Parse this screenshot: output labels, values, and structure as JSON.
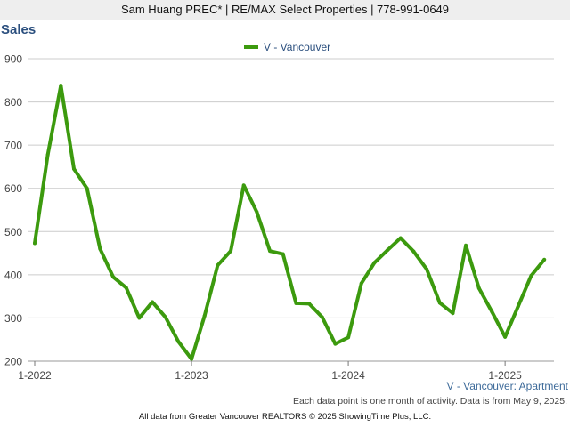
{
  "header": {
    "text": "Sam Huang PREC* | RE/MAX Select Properties | 778-991-0649"
  },
  "footer": {
    "series_caption": "V - Vancouver: Apartment",
    "note": "Each data point is one month of activity. Data is from May 9, 2025.",
    "copyright": "All data from Greater Vancouver REALTORS © 2025 ShowingTime Plus, LLC."
  },
  "colors": {
    "series": "#3c9a0e",
    "title": "#2b4f7e",
    "grid": "#cccccc",
    "header_bg": "#eeeeee"
  },
  "chart_data": {
    "type": "line",
    "title": "Sales",
    "xlabel": "",
    "ylabel": "",
    "ylim": [
      200,
      900
    ],
    "yticks": [
      200,
      300,
      400,
      500,
      600,
      700,
      800,
      900
    ],
    "xticks": [
      {
        "label": "1-2022",
        "x": "2022-01"
      },
      {
        "label": "1-2023",
        "x": "2023-01"
      },
      {
        "label": "1-2024",
        "x": "2024-01"
      },
      {
        "label": "1-2025",
        "x": "2025-01"
      }
    ],
    "grid": true,
    "legend_position": "top-center",
    "series": [
      {
        "name": "V - Vancouver",
        "x": [
          "2022-01",
          "2022-02",
          "2022-03",
          "2022-04",
          "2022-05",
          "2022-06",
          "2022-07",
          "2022-08",
          "2022-09",
          "2022-10",
          "2022-11",
          "2022-12",
          "2023-01",
          "2023-02",
          "2023-03",
          "2023-04",
          "2023-05",
          "2023-06",
          "2023-07",
          "2023-08",
          "2023-09",
          "2023-10",
          "2023-11",
          "2023-12",
          "2024-01",
          "2024-02",
          "2024-03",
          "2024-04",
          "2024-05",
          "2024-06",
          "2024-07",
          "2024-08",
          "2024-09",
          "2024-10",
          "2024-11",
          "2024-12",
          "2025-01",
          "2025-02",
          "2025-03",
          "2025-04"
        ],
        "values": [
          473,
          678,
          838,
          645,
          600,
          460,
          395,
          370,
          300,
          337,
          302,
          245,
          205,
          305,
          422,
          455,
          607,
          545,
          455,
          448,
          334,
          333,
          302,
          240,
          255,
          380,
          428,
          457,
          485,
          454,
          413,
          335,
          311,
          468,
          369,
          314,
          256,
          327,
          398,
          435
        ]
      }
    ]
  }
}
